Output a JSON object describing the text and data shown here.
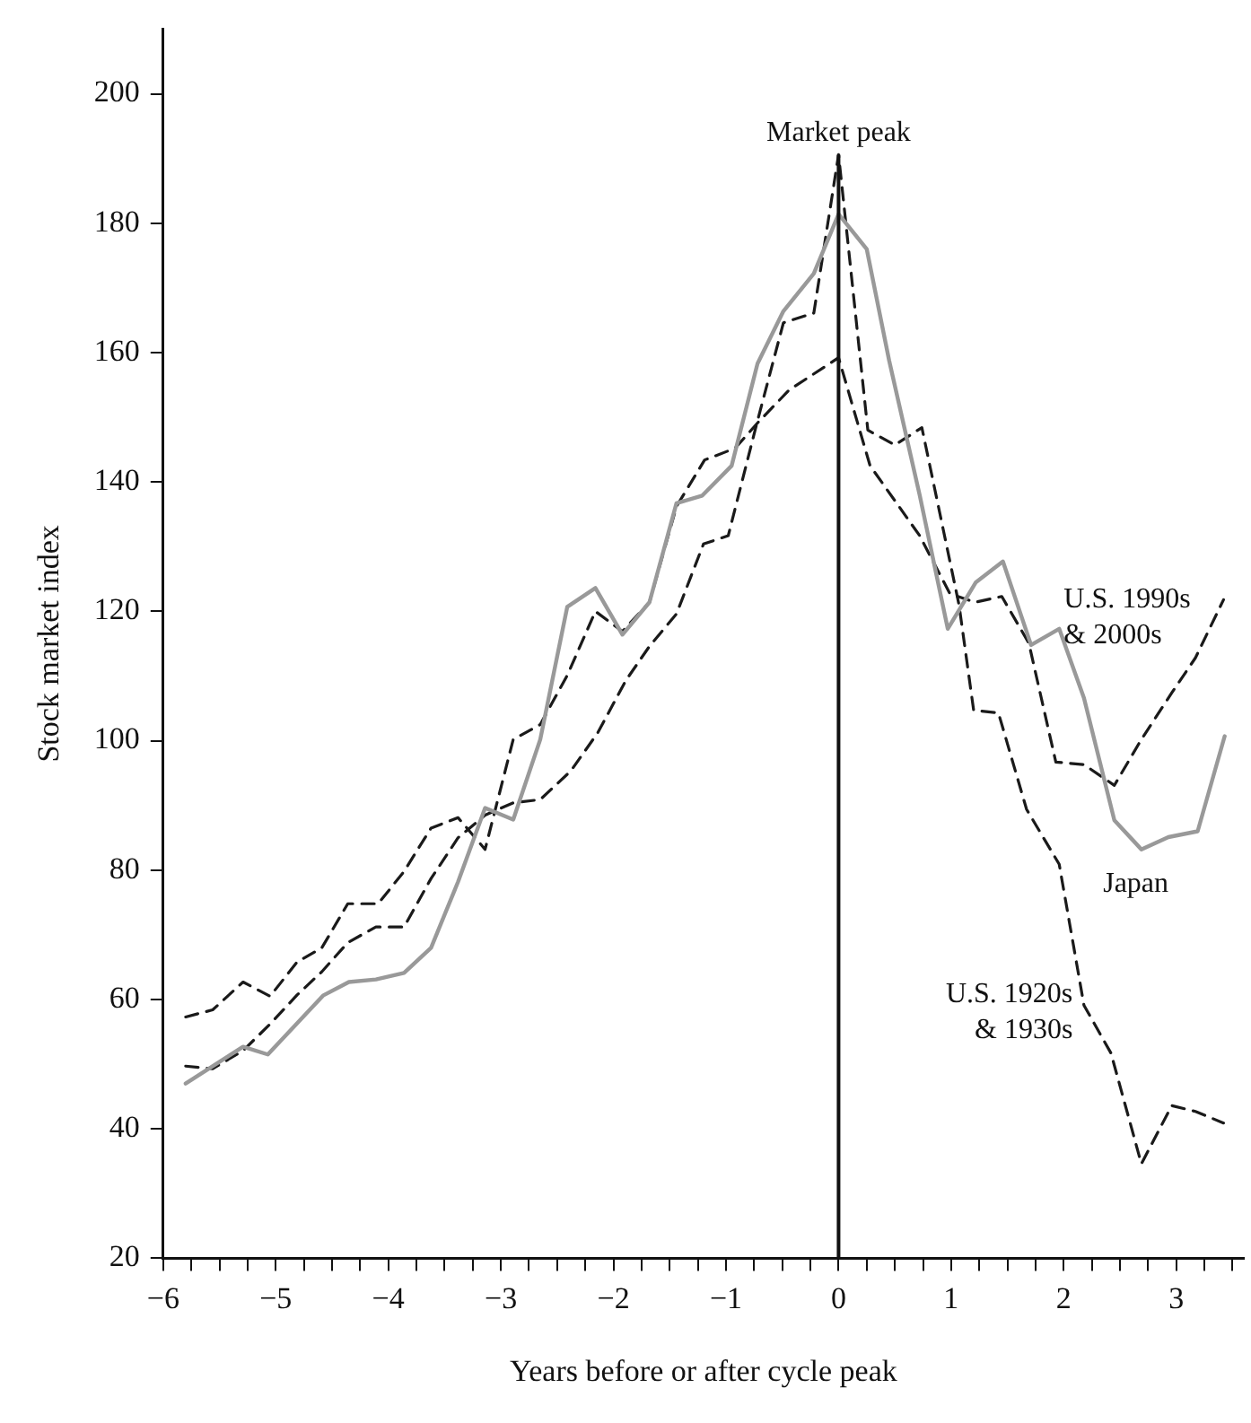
{
  "chart_data": {
    "type": "line",
    "xlabel": "Years before or after cycle peak",
    "ylabel": "Stock market index",
    "xlim": [
      -6,
      3.6
    ],
    "ylim": [
      20,
      210
    ],
    "xticks": [
      {
        "value": -6,
        "label": "−6"
      },
      {
        "value": -5.75,
        "label": null
      },
      {
        "value": -5.5,
        "label": null
      },
      {
        "value": -5.25,
        "label": null
      },
      {
        "value": -5,
        "label": "−5"
      },
      {
        "value": -4.75,
        "label": null
      },
      {
        "value": -4.5,
        "label": null
      },
      {
        "value": -4.25,
        "label": null
      },
      {
        "value": -4,
        "label": "−4"
      },
      {
        "value": -3.75,
        "label": null
      },
      {
        "value": -3.5,
        "label": null
      },
      {
        "value": -3.25,
        "label": null
      },
      {
        "value": -3,
        "label": "−3"
      },
      {
        "value": -2.75,
        "label": null
      },
      {
        "value": -2.5,
        "label": null
      },
      {
        "value": -2.25,
        "label": null
      },
      {
        "value": -2,
        "label": "−2"
      },
      {
        "value": -1.75,
        "label": null
      },
      {
        "value": -1.5,
        "label": null
      },
      {
        "value": -1.25,
        "label": null
      },
      {
        "value": -1,
        "label": "−1"
      },
      {
        "value": -0.75,
        "label": null
      },
      {
        "value": -0.5,
        "label": null
      },
      {
        "value": -0.25,
        "label": null
      },
      0,
      {
        "value": 0.25,
        "label": null
      },
      {
        "value": 0.5,
        "label": null
      },
      {
        "value": 0.75,
        "label": null
      },
      1,
      {
        "value": 1.25,
        "label": null
      },
      {
        "value": 1.5,
        "label": null
      },
      {
        "value": 1.75,
        "label": null
      },
      2,
      {
        "value": 2.25,
        "label": null
      },
      {
        "value": 2.5,
        "label": null
      },
      {
        "value": 2.75,
        "label": null
      },
      3,
      {
        "value": 3.25,
        "label": null
      },
      {
        "value": 3.5,
        "label": null
      }
    ],
    "yticks": [
      20,
      40,
      60,
      80,
      100,
      120,
      140,
      160,
      180,
      200
    ],
    "grid": false,
    "legend": false,
    "marker": "none",
    "ref_lines": [
      {
        "axis": "x",
        "value": 0,
        "label": "Market peak",
        "color": "#111111"
      }
    ],
    "series": [
      {
        "name": "Japan",
        "color": "#999999",
        "line_style": "solid",
        "x": [
          -5.8,
          -5.29,
          -5.07,
          -4.58,
          -4.35,
          -4.11,
          -3.86,
          -3.62,
          -3.38,
          -3.14,
          -2.89,
          -2.65,
          -2.41,
          -2.16,
          -1.92,
          -1.68,
          -1.44,
          -1.21,
          -0.95,
          -0.72,
          -0.49,
          -0.22,
          0,
          0.25,
          0.45,
          0.72,
          0.97,
          1.22,
          1.46,
          1.71,
          1.96,
          2.18,
          2.45,
          2.69,
          2.93,
          3.19,
          3.43
        ],
        "values": [
          47,
          52.7,
          51.5,
          60.6,
          62.7,
          63.1,
          64.1,
          68,
          78.2,
          89.6,
          87.8,
          100.2,
          120.7,
          123.6,
          116.4,
          121.4,
          136.7,
          137.9,
          142.5,
          158.3,
          166.4,
          172.2,
          181.4,
          176,
          158.7,
          138,
          117.3,
          124.5,
          127.7,
          114.8,
          117.3,
          106.6,
          87.7,
          83.2,
          85.1,
          86,
          100.7
        ]
      },
      {
        "name": "U.S. 1990s & 2000s",
        "color": "#1a1a1a",
        "line_style": "dashed",
        "x": [
          -5.8,
          -5.56,
          -5.29,
          -5.05,
          -4.81,
          -4.59,
          -4.36,
          -4.09,
          -3.86,
          -3.62,
          -3.38,
          -3.14,
          -2.89,
          -2.65,
          -2.41,
          -2.16,
          -1.92,
          -1.68,
          -1.44,
          -1.19,
          -0.92,
          -0.71,
          -0.44,
          0,
          0.28,
          0.5,
          0.72,
          0.99,
          1.21,
          1.45,
          1.69,
          1.93,
          2.18,
          2.45,
          2.69,
          2.96,
          3.17,
          3.42
        ],
        "values": [
          57.3,
          58.4,
          62.7,
          60.5,
          65.8,
          68,
          74.8,
          74.8,
          79.8,
          86.5,
          88.1,
          83.2,
          100.2,
          102.5,
          110.1,
          120,
          116.9,
          121.4,
          136.2,
          143.4,
          145.2,
          149.3,
          154.2,
          159.2,
          142.5,
          137.1,
          131.7,
          122.7,
          121.4,
          122.3,
          115.1,
          96.7,
          96.3,
          93.1,
          100.2,
          107.4,
          112.8,
          121.8
        ]
      },
      {
        "name": "U.S. 1920s & 1930s",
        "color": "#1a1a1a",
        "line_style": "dashed",
        "x": [
          -5.8,
          -5.56,
          -5.29,
          -5.05,
          -4.81,
          -4.59,
          -4.36,
          -4.11,
          -3.86,
          -3.62,
          -3.38,
          -3.14,
          -2.89,
          -2.65,
          -2.38,
          -2.14,
          -1.89,
          -1.68,
          -1.44,
          -1.2,
          -0.98,
          -0.73,
          -0.49,
          -0.22,
          0,
          0.26,
          0.5,
          0.74,
          1.07,
          1.2,
          1.42,
          1.67,
          1.96,
          2.18,
          2.42,
          2.69,
          2.96,
          3.17,
          3.42
        ],
        "values": [
          49.7,
          49.3,
          52.1,
          56.2,
          60.7,
          64.3,
          68.8,
          71.2,
          71.2,
          78.7,
          85,
          88.5,
          90.4,
          90.9,
          95.3,
          101.2,
          109.3,
          114.6,
          119.6,
          130.4,
          131.7,
          148.8,
          164.6,
          166.1,
          190.6,
          148,
          145.7,
          148.4,
          121,
          104.7,
          104.3,
          89.4,
          80.9,
          59.1,
          51.7,
          34.6,
          43.6,
          42.7,
          40.9
        ]
      }
    ]
  }
}
